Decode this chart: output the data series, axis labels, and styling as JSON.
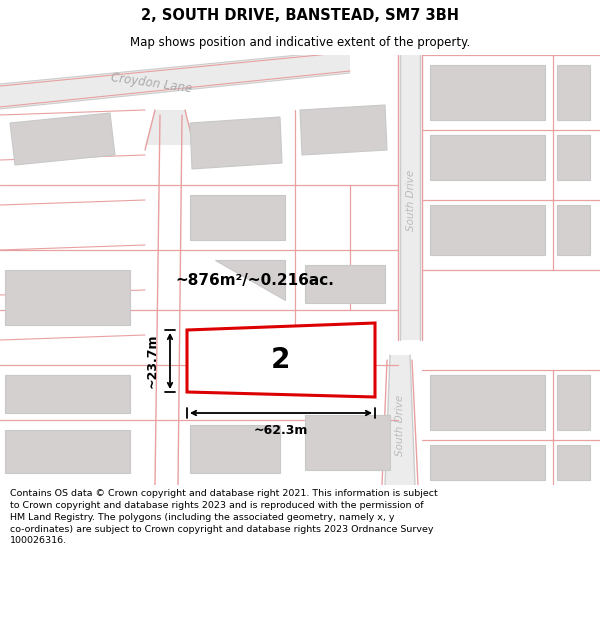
{
  "title": "2, SOUTH DRIVE, BANSTEAD, SM7 3BH",
  "subtitle": "Map shows position and indicative extent of the property.",
  "footer_line1": "Contains OS data © Crown copyright and database right 2021. This information is subject",
  "footer_line2": "to Crown copyright and database rights 2023 and is reproduced with the permission of",
  "footer_line3": "HM Land Registry. The polygons (including the associated geometry, namely x, y",
  "footer_line4": "co-ordinates) are subject to Crown copyright and database rights 2023 Ordnance Survey",
  "footer_line5": "100026316.",
  "map_bg": "#f2f0f0",
  "road_fill": "#ffffff",
  "bld_fill": "#d4d0d0",
  "bld_edge": "#c8c8c8",
  "pink_line": "#e8a0a0",
  "dark_pink": "#d47070",
  "plot_red": "#dd0000",
  "plot_label": "2",
  "area_label": "~876m²/~0.216ac.",
  "dim_width": "~62.3m",
  "dim_height": "~23.7m",
  "croydon_lane": "Croydon Lane",
  "south_drive": "South Drive"
}
